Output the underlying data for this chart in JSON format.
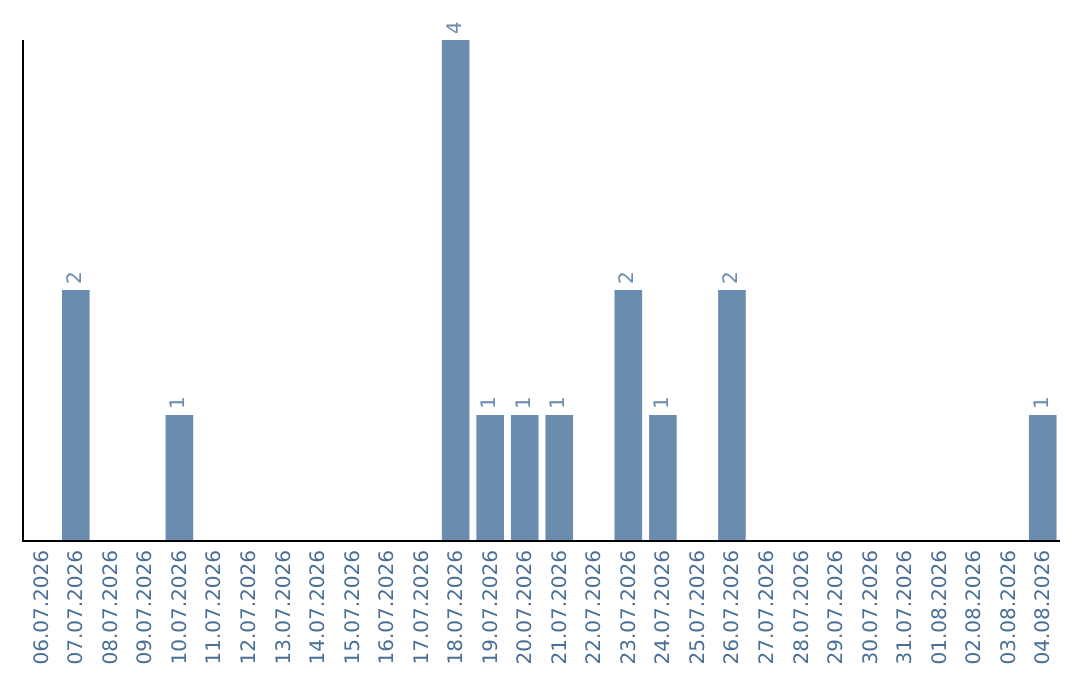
{
  "chart_data": {
    "type": "bar",
    "categories": [
      "06.07.2026",
      "07.07.2026",
      "08.07.2026",
      "09.07.2026",
      "10.07.2026",
      "11.07.2026",
      "12.07.2026",
      "13.07.2026",
      "14.07.2026",
      "15.07.2026",
      "16.07.2026",
      "17.07.2026",
      "18.07.2026",
      "19.07.2026",
      "20.07.2026",
      "21.07.2026",
      "22.07.2026",
      "23.07.2026",
      "24.07.2026",
      "25.07.2026",
      "26.07.2026",
      "27.07.2026",
      "28.07.2026",
      "29.07.2026",
      "30.07.2026",
      "31.07.2026",
      "01.08.2026",
      "02.08.2026",
      "03.08.2026",
      "04.08.2026"
    ],
    "values": [
      0,
      2,
      0,
      0,
      1,
      0,
      0,
      0,
      0,
      0,
      0,
      0,
      4,
      1,
      1,
      1,
      0,
      2,
      1,
      0,
      2,
      0,
      0,
      0,
      0,
      0,
      0,
      0,
      0,
      1
    ],
    "value_labels": [
      null,
      "2",
      null,
      null,
      "1",
      null,
      null,
      null,
      null,
      null,
      null,
      null,
      "4",
      "1",
      "1",
      "1",
      null,
      "2",
      "1",
      null,
      "2",
      null,
      null,
      null,
      null,
      null,
      null,
      null,
      null,
      "1"
    ],
    "color": "#6a8caf",
    "ylim": [
      0,
      4
    ],
    "tick_labels": "x",
    "grid": false,
    "legend": false
  }
}
